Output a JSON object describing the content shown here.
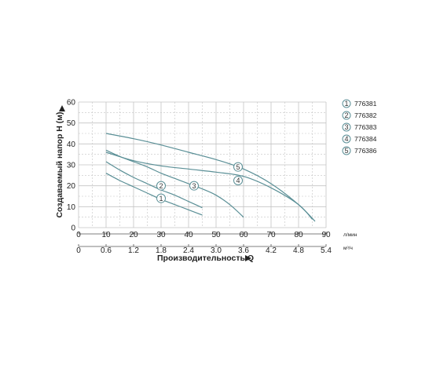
{
  "chart_data": {
    "type": "line",
    "ylabel": "Создаваемый напор H (м)",
    "xlabel": "Производительность Q",
    "y_ticks": [
      "0",
      "10",
      "20",
      "30",
      "40",
      "50",
      "60"
    ],
    "ylim": [
      0,
      60
    ],
    "x_ticks_lmin": [
      "0",
      "10",
      "20",
      "30",
      "40",
      "50",
      "60",
      "70",
      "80",
      "90"
    ],
    "x_unit_lmin": "л/мин",
    "xlim": [
      0,
      90
    ],
    "x_ticks_m3h": [
      "0",
      "0.6",
      "1.2",
      "1.8",
      "2.4",
      "3.0",
      "3.6",
      "4.2",
      "4.8",
      "5.4"
    ],
    "x_unit_m3h": "м³/ч",
    "grid": true,
    "legend_position": "right",
    "line_color": "#5a8f96",
    "series": [
      {
        "id": "1",
        "name": "776381",
        "marker_at": [
          30,
          14
        ],
        "points": [
          [
            10,
            26
          ],
          [
            15,
            22.5
          ],
          [
            20,
            19.5
          ],
          [
            25,
            16.5
          ],
          [
            30,
            13.5
          ],
          [
            35,
            11
          ],
          [
            40,
            8.5
          ],
          [
            45,
            6
          ]
        ]
      },
      {
        "id": "2",
        "name": "776382",
        "marker_at": [
          30,
          20
        ],
        "points": [
          [
            10,
            31.5
          ],
          [
            15,
            27.5
          ],
          [
            20,
            24
          ],
          [
            25,
            21
          ],
          [
            30,
            18
          ],
          [
            35,
            15.5
          ],
          [
            40,
            12.5
          ],
          [
            45,
            9.5
          ]
        ]
      },
      {
        "id": "3",
        "name": "776383",
        "marker_at": [
          42,
          20
        ],
        "points": [
          [
            10,
            37
          ],
          [
            15,
            34
          ],
          [
            20,
            31.5
          ],
          [
            25,
            29
          ],
          [
            30,
            26
          ],
          [
            35,
            23.5
          ],
          [
            40,
            21
          ],
          [
            45,
            18.5
          ],
          [
            50,
            15.5
          ],
          [
            55,
            11
          ],
          [
            60,
            5
          ]
        ]
      },
      {
        "id": "4",
        "name": "776384",
        "marker_at": [
          58,
          22.5
        ],
        "points": [
          [
            10,
            36
          ],
          [
            20,
            32
          ],
          [
            30,
            29.5
          ],
          [
            40,
            28
          ],
          [
            50,
            26.5
          ],
          [
            60,
            24.5
          ],
          [
            70,
            19
          ],
          [
            80,
            11
          ],
          [
            85,
            4
          ]
        ]
      },
      {
        "id": "5",
        "name": "776386",
        "marker_at": [
          58,
          29
        ],
        "points": [
          [
            10,
            45
          ],
          [
            20,
            42.5
          ],
          [
            30,
            39.5
          ],
          [
            40,
            36
          ],
          [
            50,
            32.5
          ],
          [
            60,
            28
          ],
          [
            70,
            21
          ],
          [
            80,
            11
          ],
          [
            86,
            3
          ]
        ]
      }
    ]
  }
}
